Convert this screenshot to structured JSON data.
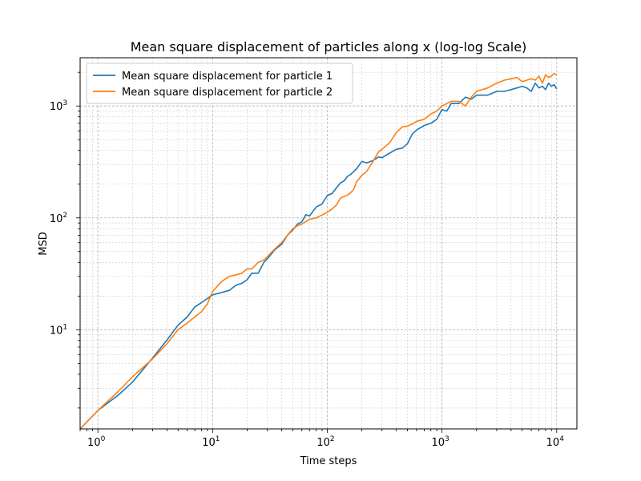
{
  "chart_data": {
    "type": "line",
    "title": "Mean square displacement of particles along x (log-log Scale)",
    "xlabel": "Time steps",
    "ylabel": "MSD",
    "xscale": "log",
    "yscale": "log",
    "xlim": [
      0.7,
      15000
    ],
    "ylim": [
      1.3,
      2700
    ],
    "grid": "both major and minor, dashed",
    "legend_position": "top-left",
    "x_ticks": [
      {
        "base": "10",
        "exp": "0"
      },
      {
        "base": "10",
        "exp": "1"
      },
      {
        "base": "10",
        "exp": "2"
      },
      {
        "base": "10",
        "exp": "3"
      },
      {
        "base": "10",
        "exp": "4"
      }
    ],
    "y_ticks": [
      {
        "base": "10",
        "exp": "1"
      },
      {
        "base": "10",
        "exp": "2"
      },
      {
        "base": "10",
        "exp": "3"
      }
    ],
    "series": [
      {
        "name": "Mean square displacement for particle 1",
        "color": "#1f77b4",
        "x": [
          0.7,
          1,
          1.5,
          2,
          3,
          4,
          5,
          6,
          7,
          8,
          9,
          10,
          12,
          14,
          16,
          18,
          20,
          22,
          25,
          28,
          30,
          35,
          40,
          45,
          50,
          55,
          60,
          65,
          70,
          80,
          90,
          100,
          110,
          120,
          130,
          140,
          150,
          160,
          170,
          180,
          200,
          220,
          250,
          280,
          300,
          350,
          400,
          450,
          500,
          550,
          600,
          700,
          800,
          900,
          1000,
          1100,
          1200,
          1400,
          1600,
          1800,
          2000,
          2500,
          3000,
          3500,
          4000,
          4500,
          5000,
          5500,
          6000,
          6500,
          7000,
          7500,
          8000,
          8500,
          9000,
          9500,
          10000
        ],
        "y": [
          1.3,
          1.9,
          2.6,
          3.4,
          5.6,
          8.1,
          11,
          13,
          16,
          17.5,
          19,
          20.5,
          21.5,
          22.5,
          25,
          26,
          28,
          32,
          32,
          40,
          43,
          52,
          58,
          70,
          78,
          88,
          92,
          107,
          104,
          125,
          133,
          158,
          165,
          185,
          205,
          214,
          235,
          245,
          260,
          275,
          320,
          310,
          325,
          350,
          345,
          380,
          410,
          420,
          460,
          560,
          610,
          670,
          700,
          760,
          930,
          900,
          1050,
          1050,
          1200,
          1150,
          1250,
          1250,
          1350,
          1350,
          1400,
          1450,
          1500,
          1450,
          1350,
          1600,
          1450,
          1500,
          1400,
          1600,
          1500,
          1550,
          1420
        ]
      },
      {
        "name": "Mean square displacement for particle 2",
        "color": "#ff7f0e",
        "x": [
          0.7,
          1,
          1.5,
          2,
          3,
          4,
          5,
          6,
          7,
          8,
          9,
          10,
          12,
          14,
          16,
          18,
          20,
          22,
          25,
          28,
          30,
          35,
          40,
          45,
          50,
          55,
          60,
          70,
          80,
          90,
          100,
          110,
          120,
          130,
          140,
          150,
          160,
          170,
          180,
          200,
          220,
          250,
          280,
          300,
          350,
          400,
          450,
          500,
          550,
          600,
          700,
          800,
          900,
          1000,
          1100,
          1200,
          1400,
          1600,
          1800,
          2000,
          2500,
          3000,
          3500,
          4000,
          4500,
          5000,
          5500,
          6000,
          6500,
          7000,
          7500,
          8000,
          8500,
          9000,
          9500,
          10000
        ],
        "y": [
          1.3,
          1.9,
          2.8,
          3.8,
          5.5,
          7.5,
          10,
          11.5,
          13,
          14.5,
          17,
          22,
          27,
          30,
          31,
          32,
          35,
          35,
          40,
          42,
          45,
          53,
          60,
          70,
          80,
          85,
          88,
          97,
          100,
          106,
          112,
          120,
          130,
          150,
          155,
          160,
          168,
          180,
          210,
          240,
          260,
          320,
          390,
          410,
          470,
          580,
          650,
          660,
          690,
          730,
          760,
          850,
          900,
          1000,
          1050,
          1100,
          1100,
          1000,
          1200,
          1350,
          1450,
          1600,
          1700,
          1750,
          1800,
          1650,
          1700,
          1750,
          1700,
          1850,
          1600,
          1900,
          1800,
          1850,
          1950,
          1900
        ]
      }
    ]
  }
}
